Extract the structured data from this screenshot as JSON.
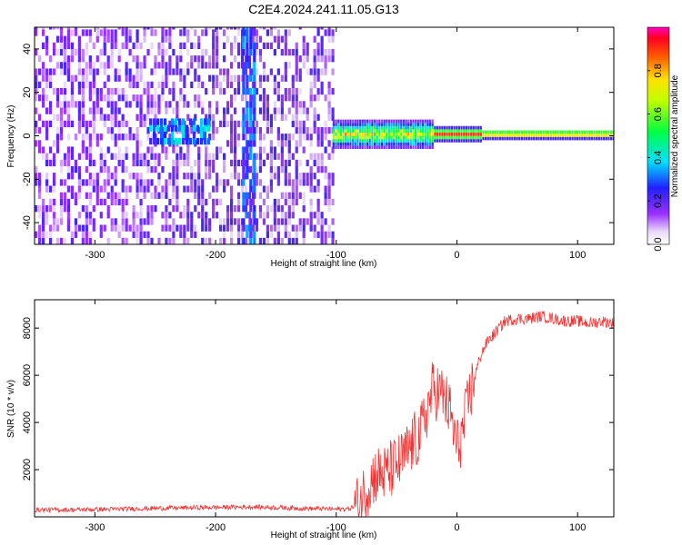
{
  "figure_title": "C2E4.2024.241.11.05.G13",
  "chart_data": [
    {
      "type": "heatmap",
      "panel": "top",
      "xlabel": "Height of straight line (km)",
      "ylabel": "Frequency (Hz)",
      "xlim": [
        -350,
        130
      ],
      "ylim": [
        -50,
        50
      ],
      "xticks": [
        -300,
        -200,
        -100,
        0,
        100
      ],
      "xtick_labels": [
        "-300",
        "-200",
        "-100",
        "0",
        "100"
      ],
      "yticks": [
        -40,
        -20,
        0,
        20,
        40
      ],
      "ytick_labels": [
        "-40",
        "-20",
        "0",
        "20",
        "40"
      ],
      "colorbar": {
        "label": "Normalized spectral amplitude",
        "range": [
          0,
          1
        ],
        "ticks": [
          0.0,
          0.2,
          0.4,
          0.6,
          0.8
        ],
        "tick_labels": [
          "0.0",
          "0.2",
          "0.4",
          "0.6",
          "0.8"
        ],
        "colormap": "rainbow (white-violet-blue-cyan-green-yellow-orange-red-magenta)"
      },
      "features": [
        {
          "description": "broadband low-amplitude noise",
          "x_range": [
            -350,
            -103
          ],
          "freq_range": [
            -50,
            50
          ],
          "amplitude": 0.2
        },
        {
          "description": "blob near 0 Hz",
          "x_range": [
            -255,
            -205
          ],
          "freq_range": [
            -4,
            8
          ],
          "amplitude": 0.35
        },
        {
          "description": "vertical streak",
          "x_range": [
            -178,
            -168
          ],
          "freq_range": [
            -50,
            50
          ],
          "amplitude": 0.3
        },
        {
          "description": "carrier line near 0 Hz, spreading below 0 km",
          "x_range": [
            -103,
            130
          ],
          "freq_center": 0,
          "amplitude": 0.9
        }
      ]
    },
    {
      "type": "line",
      "panel": "bottom",
      "xlabel": "Height of straight line (km)",
      "ylabel": "SNR (10 * v/v)",
      "xlim": [
        -350,
        130
      ],
      "ylim": [
        0,
        9200
      ],
      "xticks": [
        -300,
        -200,
        -100,
        0,
        100
      ],
      "xtick_labels": [
        "-300",
        "-200",
        "-100",
        "0",
        "100"
      ],
      "yticks": [
        2000,
        4000,
        6000,
        8000
      ],
      "ytick_labels": [
        "2000",
        "4000",
        "6000",
        "8000"
      ],
      "line_color": "#ee3333",
      "series": [
        {
          "x": [
            -350,
            -320,
            -290,
            -260,
            -230,
            -200,
            -170,
            -140,
            -120,
            -100,
            -90,
            -82,
            -75,
            -68,
            -60,
            -52,
            -45,
            -38,
            -30,
            -25,
            -20,
            -15,
            -10,
            -5,
            0,
            5,
            10,
            15,
            20,
            25,
            30,
            35,
            40,
            50,
            60,
            70,
            80,
            90,
            100,
            110,
            120,
            130
          ],
          "y": [
            300,
            300,
            320,
            350,
            380,
            400,
            420,
            380,
            350,
            330,
            340,
            500,
            1200,
            1800,
            1800,
            2100,
            2400,
            3000,
            3500,
            4500,
            5400,
            5300,
            5000,
            4300,
            2900,
            3600,
            5000,
            6000,
            6900,
            7400,
            7700,
            8000,
            8300,
            8400,
            8400,
            8500,
            8400,
            8300,
            8300,
            8200,
            8300,
            8200
          ]
        }
      ]
    }
  ]
}
